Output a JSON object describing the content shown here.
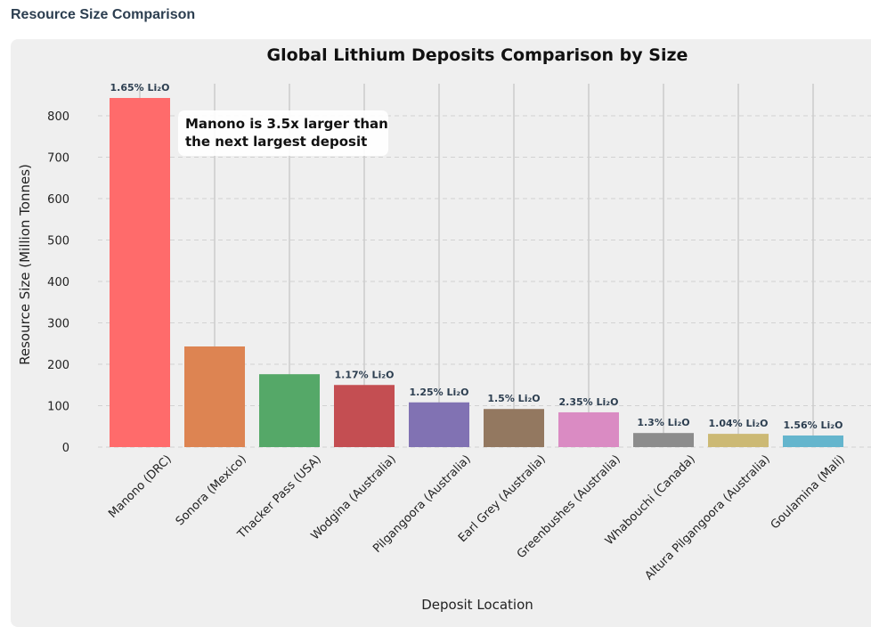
{
  "header": {
    "title": "Resource Size Comparison"
  },
  "chart_data": {
    "type": "bar",
    "title": "Global Lithium Deposits Comparison by Size",
    "xlabel": "Deposit Location",
    "ylabel": "Resource Size (Million Tonnes)",
    "ylim": [
      0,
      880
    ],
    "yticks": [
      0,
      100,
      200,
      300,
      400,
      500,
      600,
      700,
      800
    ],
    "grid": true,
    "categories": [
      "Manono (DRC)",
      "Sonora (Mexico)",
      "Thacker Pass (USA)",
      "Wodgina (Australia)",
      "Pilgangoora (Australia)",
      "Earl Grey (Australia)",
      "Greenbushes (Australia)",
      "Whabouchi (Canada)",
      "Altura Pilgangoora (Australia)",
      "Goulamina (Mali)"
    ],
    "values": [
      843,
      243,
      176,
      150,
      108,
      92,
      84,
      34,
      32,
      28
    ],
    "data_labels": [
      "1.65% Li₂O",
      "",
      "",
      "1.17% Li₂O",
      "1.25% Li₂O",
      "1.5% Li₂O",
      "2.35% Li₂O",
      "1.3% Li₂O",
      "1.04% Li₂O",
      "1.56% Li₂O"
    ],
    "colors": [
      "#ff6b6b",
      "#dd8452",
      "#55a868",
      "#c44e52",
      "#8172b3",
      "#937860",
      "#da8bc3",
      "#8c8c8c",
      "#ccb974",
      "#64b5cd"
    ],
    "annotation": "Manono is 3.5x larger than the next largest deposit",
    "annotation_lines": [
      "Manono is 3.5x larger than",
      "the next largest deposit"
    ]
  }
}
